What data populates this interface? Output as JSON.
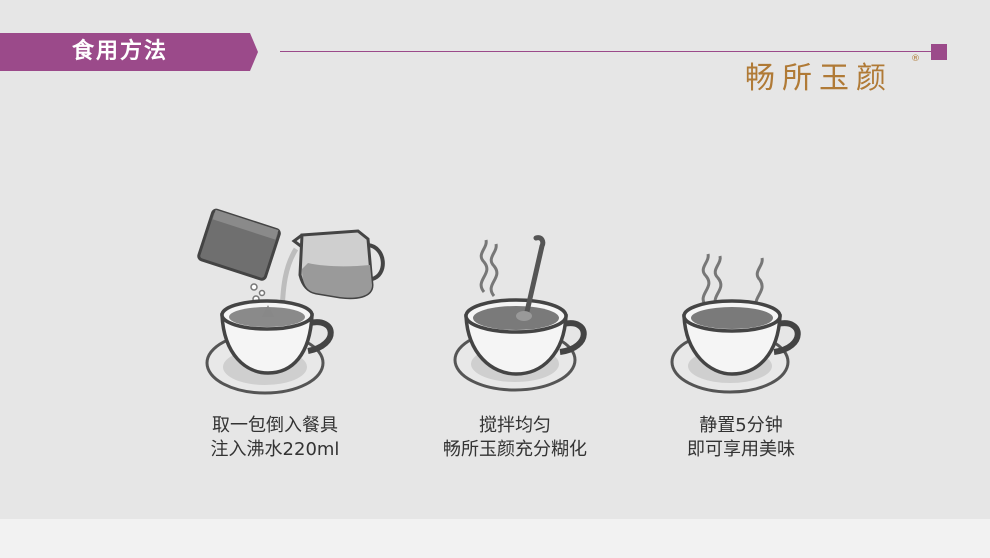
{
  "section": {
    "title": "食用方法",
    "brand": "畅所玉颜",
    "registered_mark": "®",
    "accent_color": "#9b4a8a",
    "brand_color": "#b07a36"
  },
  "steps": [
    {
      "line1": "取一包倒入餐具",
      "line2": "注入沸水220ml",
      "icon": "pour-sachet-and-water-icon"
    },
    {
      "line1": "搅拌均匀",
      "line2": "畅所玉颜充分糊化",
      "icon": "stir-cup-with-spoon-icon"
    },
    {
      "line1": "静置5分钟",
      "line2": "即可享用美味",
      "icon": "steaming-cup-icon"
    }
  ]
}
